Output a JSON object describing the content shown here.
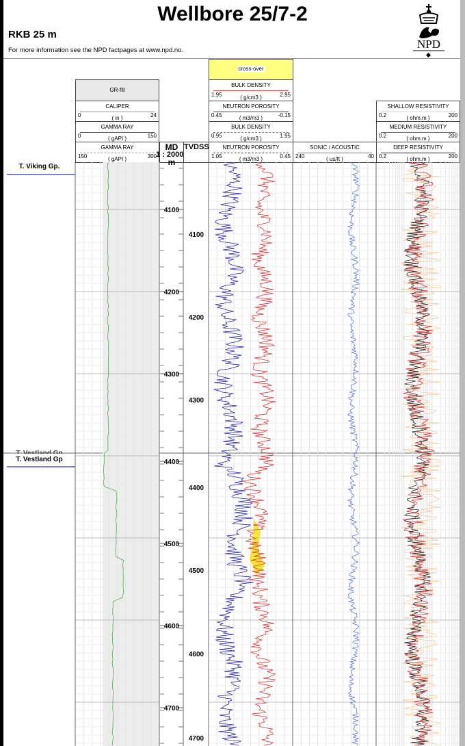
{
  "header": {
    "title": "Wellbore 25/7-2",
    "rkb": "RKB 25 m",
    "info": "For more information see the NPD factpages at www.npd.no.",
    "logo_text": "NPD"
  },
  "tracks": {
    "gr": {
      "fill_label": "GR-fill",
      "caliper": {
        "name": "CALIPER",
        "unit": "( in )",
        "min": "0",
        "max": "24",
        "color": "#5cb85c"
      },
      "gamma1": {
        "name": "GAMMA RAY",
        "unit": "( gAPI )",
        "min": "0",
        "max": "150",
        "color": "#555555"
      },
      "gamma2": {
        "name": "GAMMA RAY",
        "unit": "( gAPI )",
        "min": "150",
        "max": "300",
        "color": "#888888"
      }
    },
    "md": {
      "name": "MD",
      "scale": "1 : 2000",
      "unit": "m"
    },
    "tvdss": {
      "name": "TVDSS"
    },
    "porosity": {
      "crossover": "cross-over",
      "crossover_color": "#ffff80",
      "bulk1": {
        "name": "BULK DENSITY",
        "unit": "( g/cm3 )",
        "min": "1.95",
        "max": "2.95",
        "color": "#e05050"
      },
      "neutron1": {
        "name": "NEUTRON POROSITY",
        "unit": "( m3/m3 )",
        "min": "0.45",
        "max": "-0.15",
        "color": "#3030c0"
      },
      "bulk2": {
        "name": "BULK DENSITY",
        "unit": "( g/cm3 )",
        "min": "0.95",
        "max": "1.95",
        "color": "#e05050"
      },
      "neutron2": {
        "name": "NEUTRON POROSITY",
        "unit": "( m3/m3 )",
        "min": "1.05",
        "max": "0.45",
        "color": "#3030c0"
      }
    },
    "sonic": {
      "name": "SONIC / ACOUSTIC",
      "unit": "( us/ft )",
      "min": "240",
      "max": "40",
      "color": "#5577ee"
    },
    "resistivity": {
      "shallow": {
        "name": "SHALLOW RESISTIVITY",
        "unit": "( ohm.m )",
        "min": "0.2",
        "max": "200",
        "color": "#f5c890"
      },
      "medium": {
        "name": "MEDIUM RESISTIVITY",
        "unit": "( ohm.m )",
        "min": "0.2",
        "max": "200",
        "color": "#e03030"
      },
      "deep": {
        "name": "DEEP RESISTIVITY",
        "unit": "( ohm.m )",
        "min": "0.2",
        "max": "200",
        "color": "#222222"
      }
    }
  },
  "formations": [
    {
      "name": "T. Viking Gp."
    },
    {
      "name": "T. Vestland Gp"
    },
    {
      "name": "T. Vestland Gp"
    }
  ],
  "md_ticks": [
    "4100",
    "4200",
    "4300",
    "4400",
    "4500",
    "4600",
    "4700"
  ],
  "tvdss_ticks": [
    "4100",
    "4200",
    "4300",
    "4400",
    "4500",
    "4600",
    "4700"
  ]
}
